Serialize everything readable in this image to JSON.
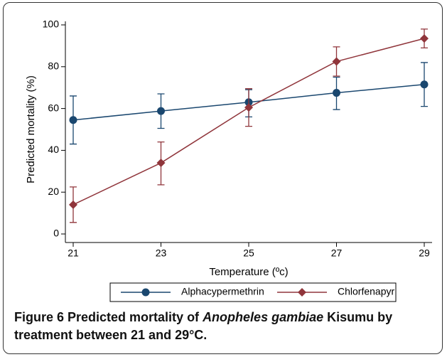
{
  "chart_data": {
    "type": "line",
    "ylabel": "Predicted mortality (%)",
    "xlabel": "Temperature (ºc)",
    "x": [
      21,
      23,
      25,
      27,
      29
    ],
    "xlim": [
      21,
      29
    ],
    "xticks": [
      21,
      23,
      25,
      27,
      29
    ],
    "ylim": [
      0,
      100
    ],
    "yticks": [
      0,
      20,
      40,
      60,
      80,
      100
    ],
    "legend": "bottom",
    "series": [
      {
        "name": "Alphacypermethrin",
        "color": "#1a476f",
        "marker": "circle",
        "values": [
          54.5,
          58.8,
          63,
          67.5,
          71.5
        ],
        "lower": [
          43,
          50.5,
          56,
          59.5,
          61
        ],
        "upper": [
          66,
          67,
          69,
          75,
          82
        ]
      },
      {
        "name": "Chlorfenapyr",
        "color": "#90353b",
        "marker": "diamond",
        "values": [
          14,
          34,
          60.5,
          82.5,
          93.5
        ],
        "lower": [
          5.5,
          23.5,
          51.5,
          75.5,
          89
        ],
        "upper": [
          22.5,
          44,
          69.5,
          89.5,
          98
        ]
      }
    ]
  },
  "caption": {
    "label": "Figure 6",
    "text1": " Predicted mortality of ",
    "species": "Anopheles gambiae",
    "text2": " Kisumu by treatment between 21 and 29°C."
  }
}
